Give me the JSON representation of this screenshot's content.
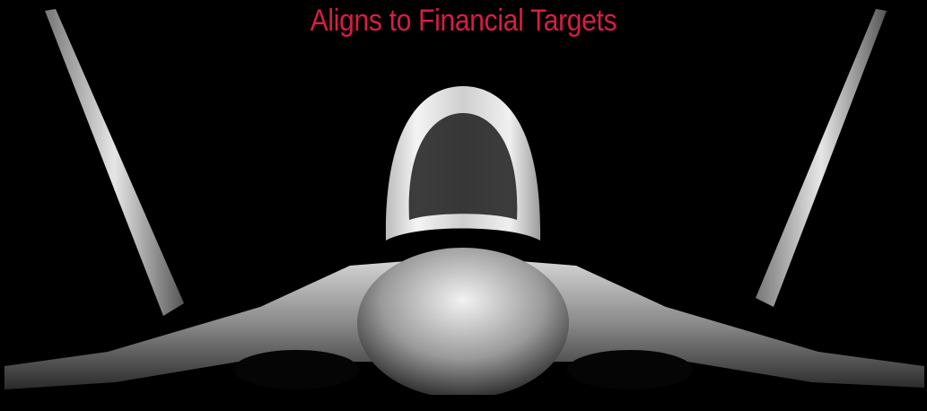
{
  "title": "Aligns to Financial Targets"
}
